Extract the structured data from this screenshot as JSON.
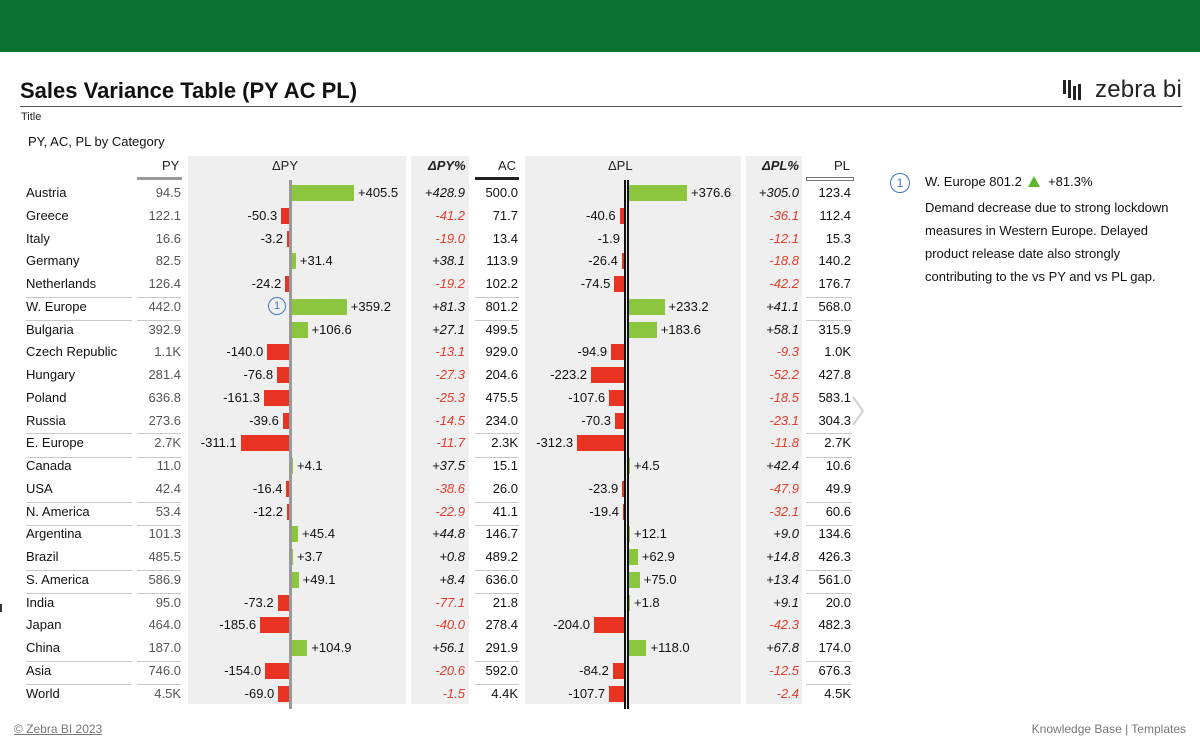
{
  "title": "Sales Variance Table (PY AC PL)",
  "title_caption": "Title",
  "subtitle": "PY, AC, PL by Category",
  "logo_text": "zebra bi",
  "headers": {
    "py": "PY",
    "dpy": "ΔPY",
    "dpy_pct": "ΔPY%",
    "ac": "AC",
    "dpl": "ΔPL",
    "dpl_pct": "ΔPL%",
    "pl": "PL"
  },
  "colors": {
    "green_header": "#0a7132",
    "positive": "#8cc63f",
    "negative": "#e93424",
    "accent": "#3d78c6"
  },
  "rows": [
    {
      "name": "Austria",
      "py": "94.5",
      "dpy": "+405.5",
      "dpy_v": 405.5,
      "dpy_pct": "+428.9",
      "ac": "500.0",
      "dpl": "+376.6",
      "dpl_v": 376.6,
      "dpl_pct": "+305.0",
      "pl": "123.4"
    },
    {
      "name": "Greece",
      "py": "122.1",
      "dpy": "-50.3",
      "dpy_v": -50.3,
      "dpy_pct": "-41.2",
      "ac": "71.7",
      "dpl": "-40.6",
      "dpl_v": -40.6,
      "dpl_pct": "-36.1",
      "pl": "112.4"
    },
    {
      "name": "Italy",
      "py": "16.6",
      "dpy": "-3.2",
      "dpy_v": -3.2,
      "dpy_pct": "-19.0",
      "ac": "13.4",
      "dpl": "-1.9",
      "dpl_v": -1.9,
      "dpl_pct": "-12.1",
      "pl": "15.3"
    },
    {
      "name": "Germany",
      "py": "82.5",
      "dpy": "+31.4",
      "dpy_v": 31.4,
      "dpy_pct": "+38.1",
      "ac": "113.9",
      "dpl": "-26.4",
      "dpl_v": -26.4,
      "dpl_pct": "-18.8",
      "pl": "140.2"
    },
    {
      "name": "Netherlands",
      "py": "126.4",
      "dpy": "-24.2",
      "dpy_v": -24.2,
      "dpy_pct": "-19.2",
      "ac": "102.2",
      "dpl": "-74.5",
      "dpl_v": -74.5,
      "dpl_pct": "-42.2",
      "pl": "176.7"
    },
    {
      "name": "W. Europe",
      "py": "442.0",
      "dpy": "+359.2",
      "dpy_v": 359.2,
      "dpy_pct": "+81.3",
      "ac": "801.2",
      "dpl": "+233.2",
      "dpl_v": 233.2,
      "dpl_pct": "+41.1",
      "pl": "568.0",
      "subtotal": true,
      "marker": "1"
    },
    {
      "name": "Bulgaria",
      "py": "392.9",
      "dpy": "+106.6",
      "dpy_v": 106.6,
      "dpy_pct": "+27.1",
      "ac": "499.5",
      "dpl": "+183.6",
      "dpl_v": 183.6,
      "dpl_pct": "+58.1",
      "pl": "315.9"
    },
    {
      "name": "Czech Republic",
      "py": "1.1K",
      "dpy": "-140.0",
      "dpy_v": -140.0,
      "dpy_pct": "-13.1",
      "ac": "929.0",
      "dpl": "-94.9",
      "dpl_v": -94.9,
      "dpl_pct": "-9.3",
      "pl": "1.0K"
    },
    {
      "name": "Hungary",
      "py": "281.4",
      "dpy": "-76.8",
      "dpy_v": -76.8,
      "dpy_pct": "-27.3",
      "ac": "204.6",
      "dpl": "-223.2",
      "dpl_v": -223.2,
      "dpl_pct": "-52.2",
      "pl": "427.8"
    },
    {
      "name": "Poland",
      "py": "636.8",
      "dpy": "-161.3",
      "dpy_v": -161.3,
      "dpy_pct": "-25.3",
      "ac": "475.5",
      "dpl": "-107.6",
      "dpl_v": -107.6,
      "dpl_pct": "-18.5",
      "pl": "583.1"
    },
    {
      "name": "Russia",
      "py": "273.6",
      "dpy": "-39.6",
      "dpy_v": -39.6,
      "dpy_pct": "-14.5",
      "ac": "234.0",
      "dpl": "-70.3",
      "dpl_v": -70.3,
      "dpl_pct": "-23.1",
      "pl": "304.3"
    },
    {
      "name": "E. Europe",
      "py": "2.7K",
      "dpy": "-311.1",
      "dpy_v": -311.1,
      "dpy_pct": "-11.7",
      "ac": "2.3K",
      "dpl": "-312.3",
      "dpl_v": -312.3,
      "dpl_pct": "-11.8",
      "pl": "2.7K",
      "subtotal": true
    },
    {
      "name": "Canada",
      "py": "11.0",
      "dpy": "+4.1",
      "dpy_v": 4.1,
      "dpy_pct": "+37.5",
      "ac": "15.1",
      "dpl": "+4.5",
      "dpl_v": 4.5,
      "dpl_pct": "+42.4",
      "pl": "10.6"
    },
    {
      "name": "USA",
      "py": "42.4",
      "dpy": "-16.4",
      "dpy_v": -16.4,
      "dpy_pct": "-38.6",
      "ac": "26.0",
      "dpl": "-23.9",
      "dpl_v": -23.9,
      "dpl_pct": "-47.9",
      "pl": "49.9"
    },
    {
      "name": "N. America",
      "py": "53.4",
      "dpy": "-12.2",
      "dpy_v": -12.2,
      "dpy_pct": "-22.9",
      "ac": "41.1",
      "dpl": "-19.4",
      "dpl_v": -19.4,
      "dpl_pct": "-32.1",
      "pl": "60.6",
      "subtotal": true
    },
    {
      "name": "Argentina",
      "py": "101.3",
      "dpy": "+45.4",
      "dpy_v": 45.4,
      "dpy_pct": "+44.8",
      "ac": "146.7",
      "dpl": "+12.1",
      "dpl_v": 12.1,
      "dpl_pct": "+9.0",
      "pl": "134.6"
    },
    {
      "name": "Brazil",
      "py": "485.5",
      "dpy": "+3.7",
      "dpy_v": 3.7,
      "dpy_pct": "+0.8",
      "ac": "489.2",
      "dpl": "+62.9",
      "dpl_v": 62.9,
      "dpl_pct": "+14.8",
      "pl": "426.3"
    },
    {
      "name": "S. America",
      "py": "586.9",
      "dpy": "+49.1",
      "dpy_v": 49.1,
      "dpy_pct": "+8.4",
      "ac": "636.0",
      "dpl": "+75.0",
      "dpl_v": 75.0,
      "dpl_pct": "+13.4",
      "pl": "561.0",
      "subtotal": true
    },
    {
      "name": "India",
      "py": "95.0",
      "dpy": "-73.2",
      "dpy_v": -73.2,
      "dpy_pct": "-77.1",
      "ac": "21.8",
      "dpl": "+1.8",
      "dpl_v": 1.8,
      "dpl_pct": "+9.1",
      "pl": "20.0"
    },
    {
      "name": "Japan",
      "py": "464.0",
      "dpy": "-185.6",
      "dpy_v": -185.6,
      "dpy_pct": "-40.0",
      "ac": "278.4",
      "dpl": "-204.0",
      "dpl_v": -204.0,
      "dpl_pct": "-42.3",
      "pl": "482.3"
    },
    {
      "name": "China",
      "py": "187.0",
      "dpy": "+104.9",
      "dpy_v": 104.9,
      "dpy_pct": "+56.1",
      "ac": "291.9",
      "dpl": "+118.0",
      "dpl_v": 118.0,
      "dpl_pct": "+67.8",
      "pl": "174.0"
    },
    {
      "name": "Asia",
      "py": "746.0",
      "dpy": "-154.0",
      "dpy_v": -154.0,
      "dpy_pct": "-20.6",
      "ac": "592.0",
      "dpl": "-84.2",
      "dpl_v": -84.2,
      "dpl_pct": "-12.5",
      "pl": "676.3",
      "subtotal": true
    },
    {
      "name": "World",
      "py": "4.5K",
      "dpy": "-69.0",
      "dpy_v": -69.0,
      "dpy_pct": "-1.5",
      "ac": "4.4K",
      "dpl": "-107.7",
      "dpl_v": -107.7,
      "dpl_pct": "-2.4",
      "pl": "4.5K"
    }
  ],
  "note": {
    "marker": "1",
    "head_label": "W. Europe 801.2",
    "head_change": "+81.3%",
    "body": "Demand decrease due to strong lockdown measures in Western Europe. Delayed product release date also strongly contributing to the vs PY and vs PL gap."
  },
  "footer": {
    "copyright": "© Zebra BI 2023",
    "links": "Knowledge Base  |  Templates"
  }
}
